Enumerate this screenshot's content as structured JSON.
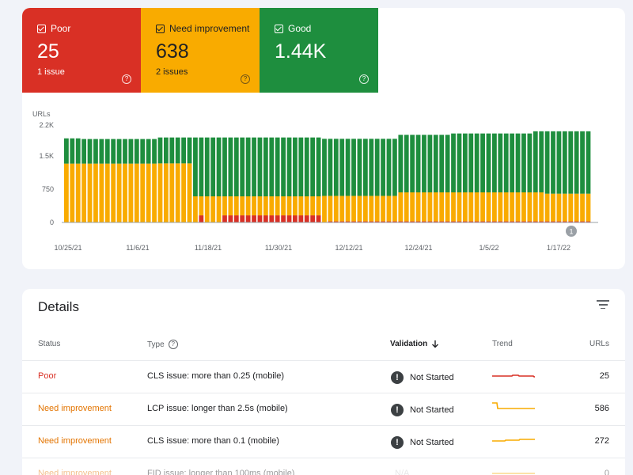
{
  "summary": {
    "poor": {
      "label": "Poor",
      "value": "25",
      "sub": "1 issue",
      "color": "#d93025"
    },
    "need": {
      "label": "Need improvement",
      "value": "638",
      "sub": "2 issues",
      "color": "#f9ab00"
    },
    "good": {
      "label": "Good",
      "value": "1.44K",
      "color": "#1e8e3e"
    },
    "help_glyph": "?"
  },
  "chart_data": {
    "type": "bar",
    "ylabel": "URLs",
    "yticks": [
      "2.2K",
      "1.5K",
      "750",
      "0"
    ],
    "ylim": [
      0,
      2200
    ],
    "xticks": [
      "10/25/21",
      "11/6/21",
      "11/18/21",
      "11/30/21",
      "12/12/21",
      "12/24/21",
      "1/5/22",
      "1/17/22"
    ],
    "stacked": true,
    "bar_count": 90,
    "series": [
      {
        "name": "Poor",
        "color": "#d93025",
        "segments": [
          [
            0,
            22,
            5
          ],
          [
            23,
            24,
            160
          ],
          [
            25,
            27,
            5
          ],
          [
            27,
            44,
            160
          ],
          [
            45,
            90,
            25
          ]
        ]
      },
      {
        "name": "Need improvement",
        "color": "#f9ab00",
        "segments": [
          [
            0,
            16,
            1330
          ],
          [
            16,
            22,
            1335
          ],
          [
            22,
            44,
            590
          ],
          [
            44,
            57,
            600
          ],
          [
            57,
            66,
            680
          ],
          [
            66,
            82,
            680
          ],
          [
            82,
            90,
            650
          ]
        ]
      },
      {
        "name": "Good",
        "color": "#1e8e3e",
        "total_segments": [
          [
            0,
            3,
            1900
          ],
          [
            3,
            16,
            1885
          ],
          [
            16,
            22,
            1920
          ],
          [
            22,
            44,
            1920
          ],
          [
            44,
            57,
            1890
          ],
          [
            57,
            66,
            1980
          ],
          [
            66,
            80,
            2010
          ],
          [
            80,
            90,
            2060
          ]
        ]
      }
    ],
    "annotation_marker": "1"
  },
  "details": {
    "title": "Details",
    "columns": {
      "status": "Status",
      "type": "Type",
      "validation": "Validation",
      "trend": "Trend",
      "urls": "URLs"
    },
    "help_glyph": "?",
    "rows": [
      {
        "status": "Poor",
        "status_class": "poor",
        "type": "CLS issue: more than 0.25 (mobile)",
        "validation": "Not Started",
        "urls": "25",
        "trend_color": "#d93025"
      },
      {
        "status": "Need improvement",
        "status_class": "need",
        "type": "LCP issue: longer than 2.5s (mobile)",
        "validation": "Not Started",
        "urls": "586",
        "trend_color": "#f9ab00"
      },
      {
        "status": "Need improvement",
        "status_class": "need",
        "type": "CLS issue: more than 0.1 (mobile)",
        "validation": "Not Started",
        "urls": "272",
        "trend_color": "#f9ab00"
      },
      {
        "status": "Need improvement",
        "status_class": "need",
        "type": "FID issue: longer than 100ms (mobile)",
        "validation": "N/A",
        "urls": "0",
        "trend_color": "#f9ab00"
      }
    ]
  }
}
